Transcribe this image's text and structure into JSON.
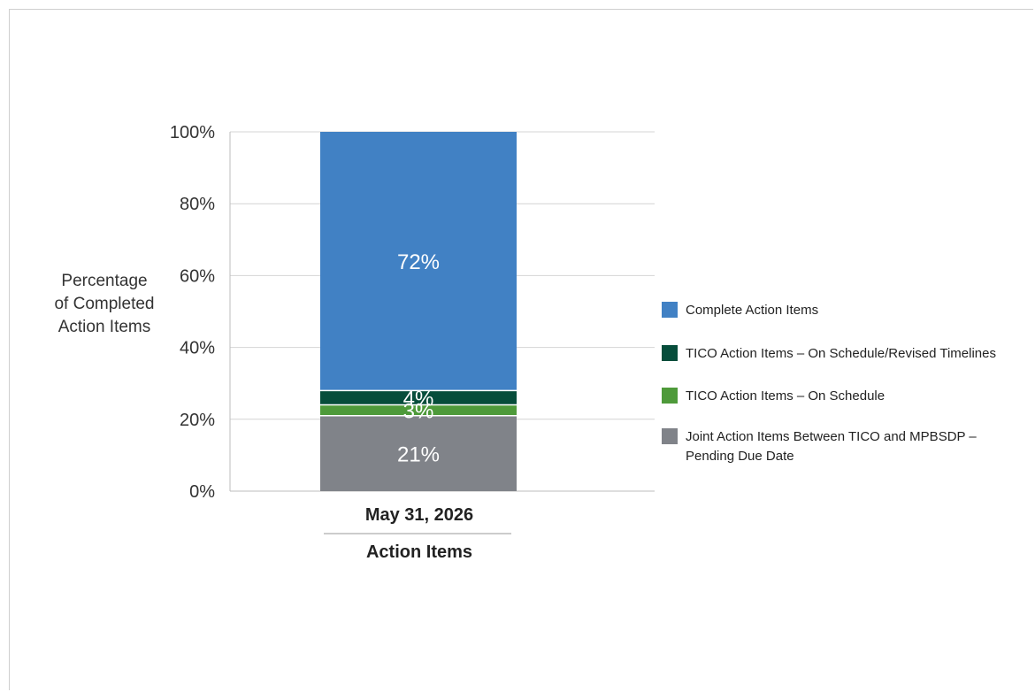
{
  "chart_data": {
    "type": "bar",
    "stacked": true,
    "categories": [
      "May 31, 2026"
    ],
    "xlabel": "Action Items",
    "ylabel": "Percentage of Completed Action Items",
    "ylim": [
      0,
      100
    ],
    "yticks": [
      "0%",
      "20%",
      "40%",
      "60%",
      "80%",
      "100%"
    ],
    "grid": true,
    "legend_position": "right",
    "series": [
      {
        "name": "Joint Action Items Between TICO and MPBSDP – Pending Due Date",
        "values": [
          21
        ],
        "label": "21%",
        "color": "#808389"
      },
      {
        "name": "TICO Action Items – On Schedule",
        "values": [
          3
        ],
        "label": "3%",
        "color": "#4e9a3a"
      },
      {
        "name": "TICO Action Items – On Schedule/Revised Timelines",
        "values": [
          4
        ],
        "label": "4%",
        "color": "#064d3b"
      },
      {
        "name": "Complete Action Items",
        "values": [
          72
        ],
        "label": "72%",
        "color": "#4181c4"
      }
    ]
  }
}
